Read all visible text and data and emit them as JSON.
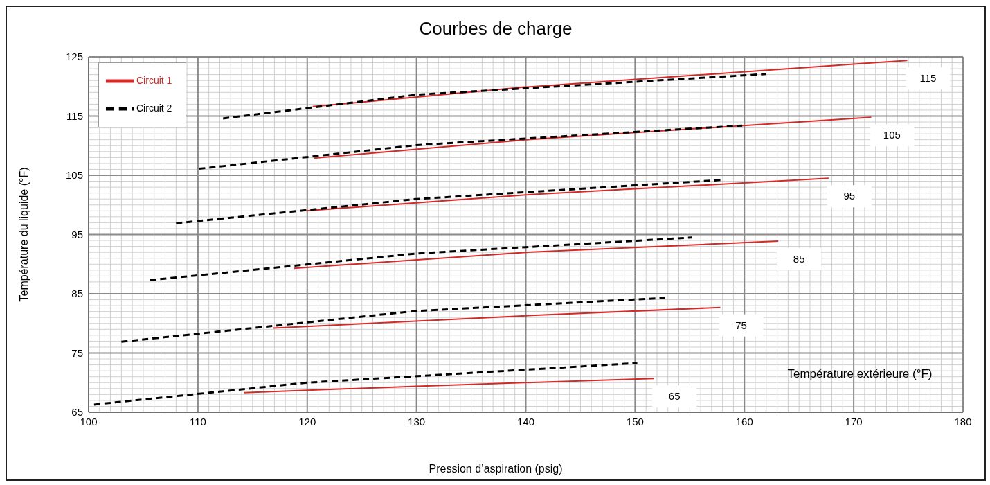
{
  "chart_data": {
    "type": "line",
    "title": "Courbes de charge",
    "xlabel": "Pression d’aspiration (psig)",
    "ylabel": "Température du liquide (°F)",
    "xlim": [
      100,
      180
    ],
    "xticks": [
      100,
      110,
      120,
      130,
      140,
      150,
      160,
      170,
      180
    ],
    "ylim": [
      65,
      125
    ],
    "yticks": [
      65,
      75,
      85,
      95,
      105,
      115,
      125
    ],
    "grid": true,
    "legend": "top left",
    "marker": "none",
    "series": [
      {
        "name": "Circuit 1",
        "color": "#d42a2a",
        "line_style": "solid",
        "x": [
          120.5,
          140,
          174.9,
          null,
          120.6,
          140,
          171.6,
          null,
          119.9,
          140,
          167.7,
          null,
          118.8,
          140,
          163.1,
          null,
          116.9,
          140,
          157.8,
          null,
          114.2,
          130,
          151.7
        ],
        "values": [
          116.6,
          119.9,
          124.4,
          null,
          107.9,
          111.0,
          114.8,
          null,
          99.0,
          101.7,
          104.5,
          null,
          89.3,
          92.0,
          93.9,
          null,
          79.2,
          81.3,
          82.7,
          null,
          68.3,
          69.4,
          70.7
        ]
      },
      {
        "name": "Circuit 2",
        "color": "#000000",
        "line_style": "dashed",
        "x": [
          112.3,
          130,
          162.0,
          null,
          110.1,
          130,
          159.8,
          null,
          108.0,
          130,
          157.8,
          null,
          105.6,
          130,
          155.2,
          null,
          103.0,
          130,
          152.7,
          null,
          100.5,
          120,
          150.2
        ],
        "values": [
          114.6,
          118.6,
          122.1,
          null,
          106.1,
          110.1,
          113.4,
          null,
          96.9,
          101.0,
          104.2,
          null,
          87.3,
          91.8,
          94.5,
          null,
          76.9,
          82.1,
          84.3,
          null,
          66.3,
          70.0,
          73.3
        ]
      }
    ],
    "annotations": [
      {
        "text": "115",
        "x": 174.9,
        "y": 124.4
      },
      {
        "text": "105",
        "x": 171.6,
        "y": 114.8
      },
      {
        "text": "95",
        "x": 167.7,
        "y": 104.5
      },
      {
        "text": "85",
        "x": 163.1,
        "y": 93.9
      },
      {
        "text": "75",
        "x": 157.8,
        "y": 82.7
      },
      {
        "text": "65",
        "x": 151.7,
        "y": 70.7
      },
      "Température extérieure (°F)"
    ]
  }
}
